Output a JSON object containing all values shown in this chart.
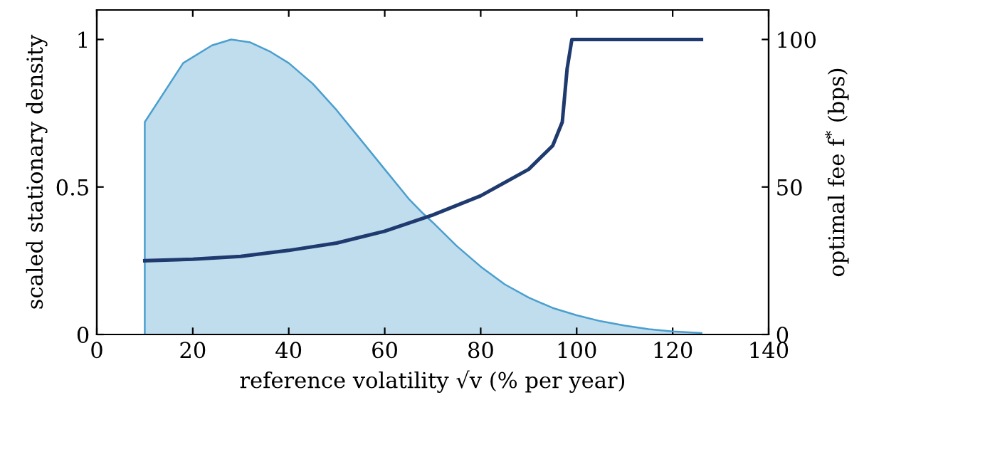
{
  "chart_data": {
    "type": "area",
    "xlabel": "reference volatility √v (% per year)",
    "ylabel": "scaled stationary density",
    "y2label": "optimal fee f$^{*}$ (bps)",
    "xlim": [
      0,
      140
    ],
    "xticks": [
      0,
      20,
      40,
      60,
      80,
      100,
      120,
      140
    ],
    "ylim": [
      0,
      1.1
    ],
    "yticks": [
      0,
      0.5,
      1
    ],
    "y2lim": [
      0,
      110
    ],
    "y2ticks": [
      0,
      50,
      100
    ],
    "grid": false,
    "series": [
      {
        "color": "#4a9fcf",
        "x": [
          10,
          10,
          18,
          24,
          28,
          32,
          36,
          40,
          45,
          50,
          55,
          60,
          65,
          68,
          70,
          75,
          80,
          85,
          90,
          95,
          100,
          105,
          110,
          115,
          120,
          126
        ],
        "values": [
          0,
          0.72,
          0.92,
          0.98,
          1.0,
          0.99,
          0.96,
          0.92,
          0.85,
          0.76,
          0.66,
          0.56,
          0.46,
          0.41,
          0.38,
          0.3,
          0.23,
          0.17,
          0.125,
          0.09,
          0.065,
          0.045,
          0.03,
          0.018,
          0.01,
          0.005
        ]
      },
      {
        "type": "line",
        "axis": "y2",
        "color": "#1f3a6e",
        "x": [
          10,
          20,
          30,
          40,
          50,
          60,
          70,
          80,
          90,
          95,
          97,
          98,
          99,
          126
        ],
        "values": [
          25,
          25.5,
          26.5,
          28.5,
          31,
          35,
          40.5,
          47,
          56,
          64,
          72,
          90,
          100,
          100
        ]
      }
    ]
  }
}
